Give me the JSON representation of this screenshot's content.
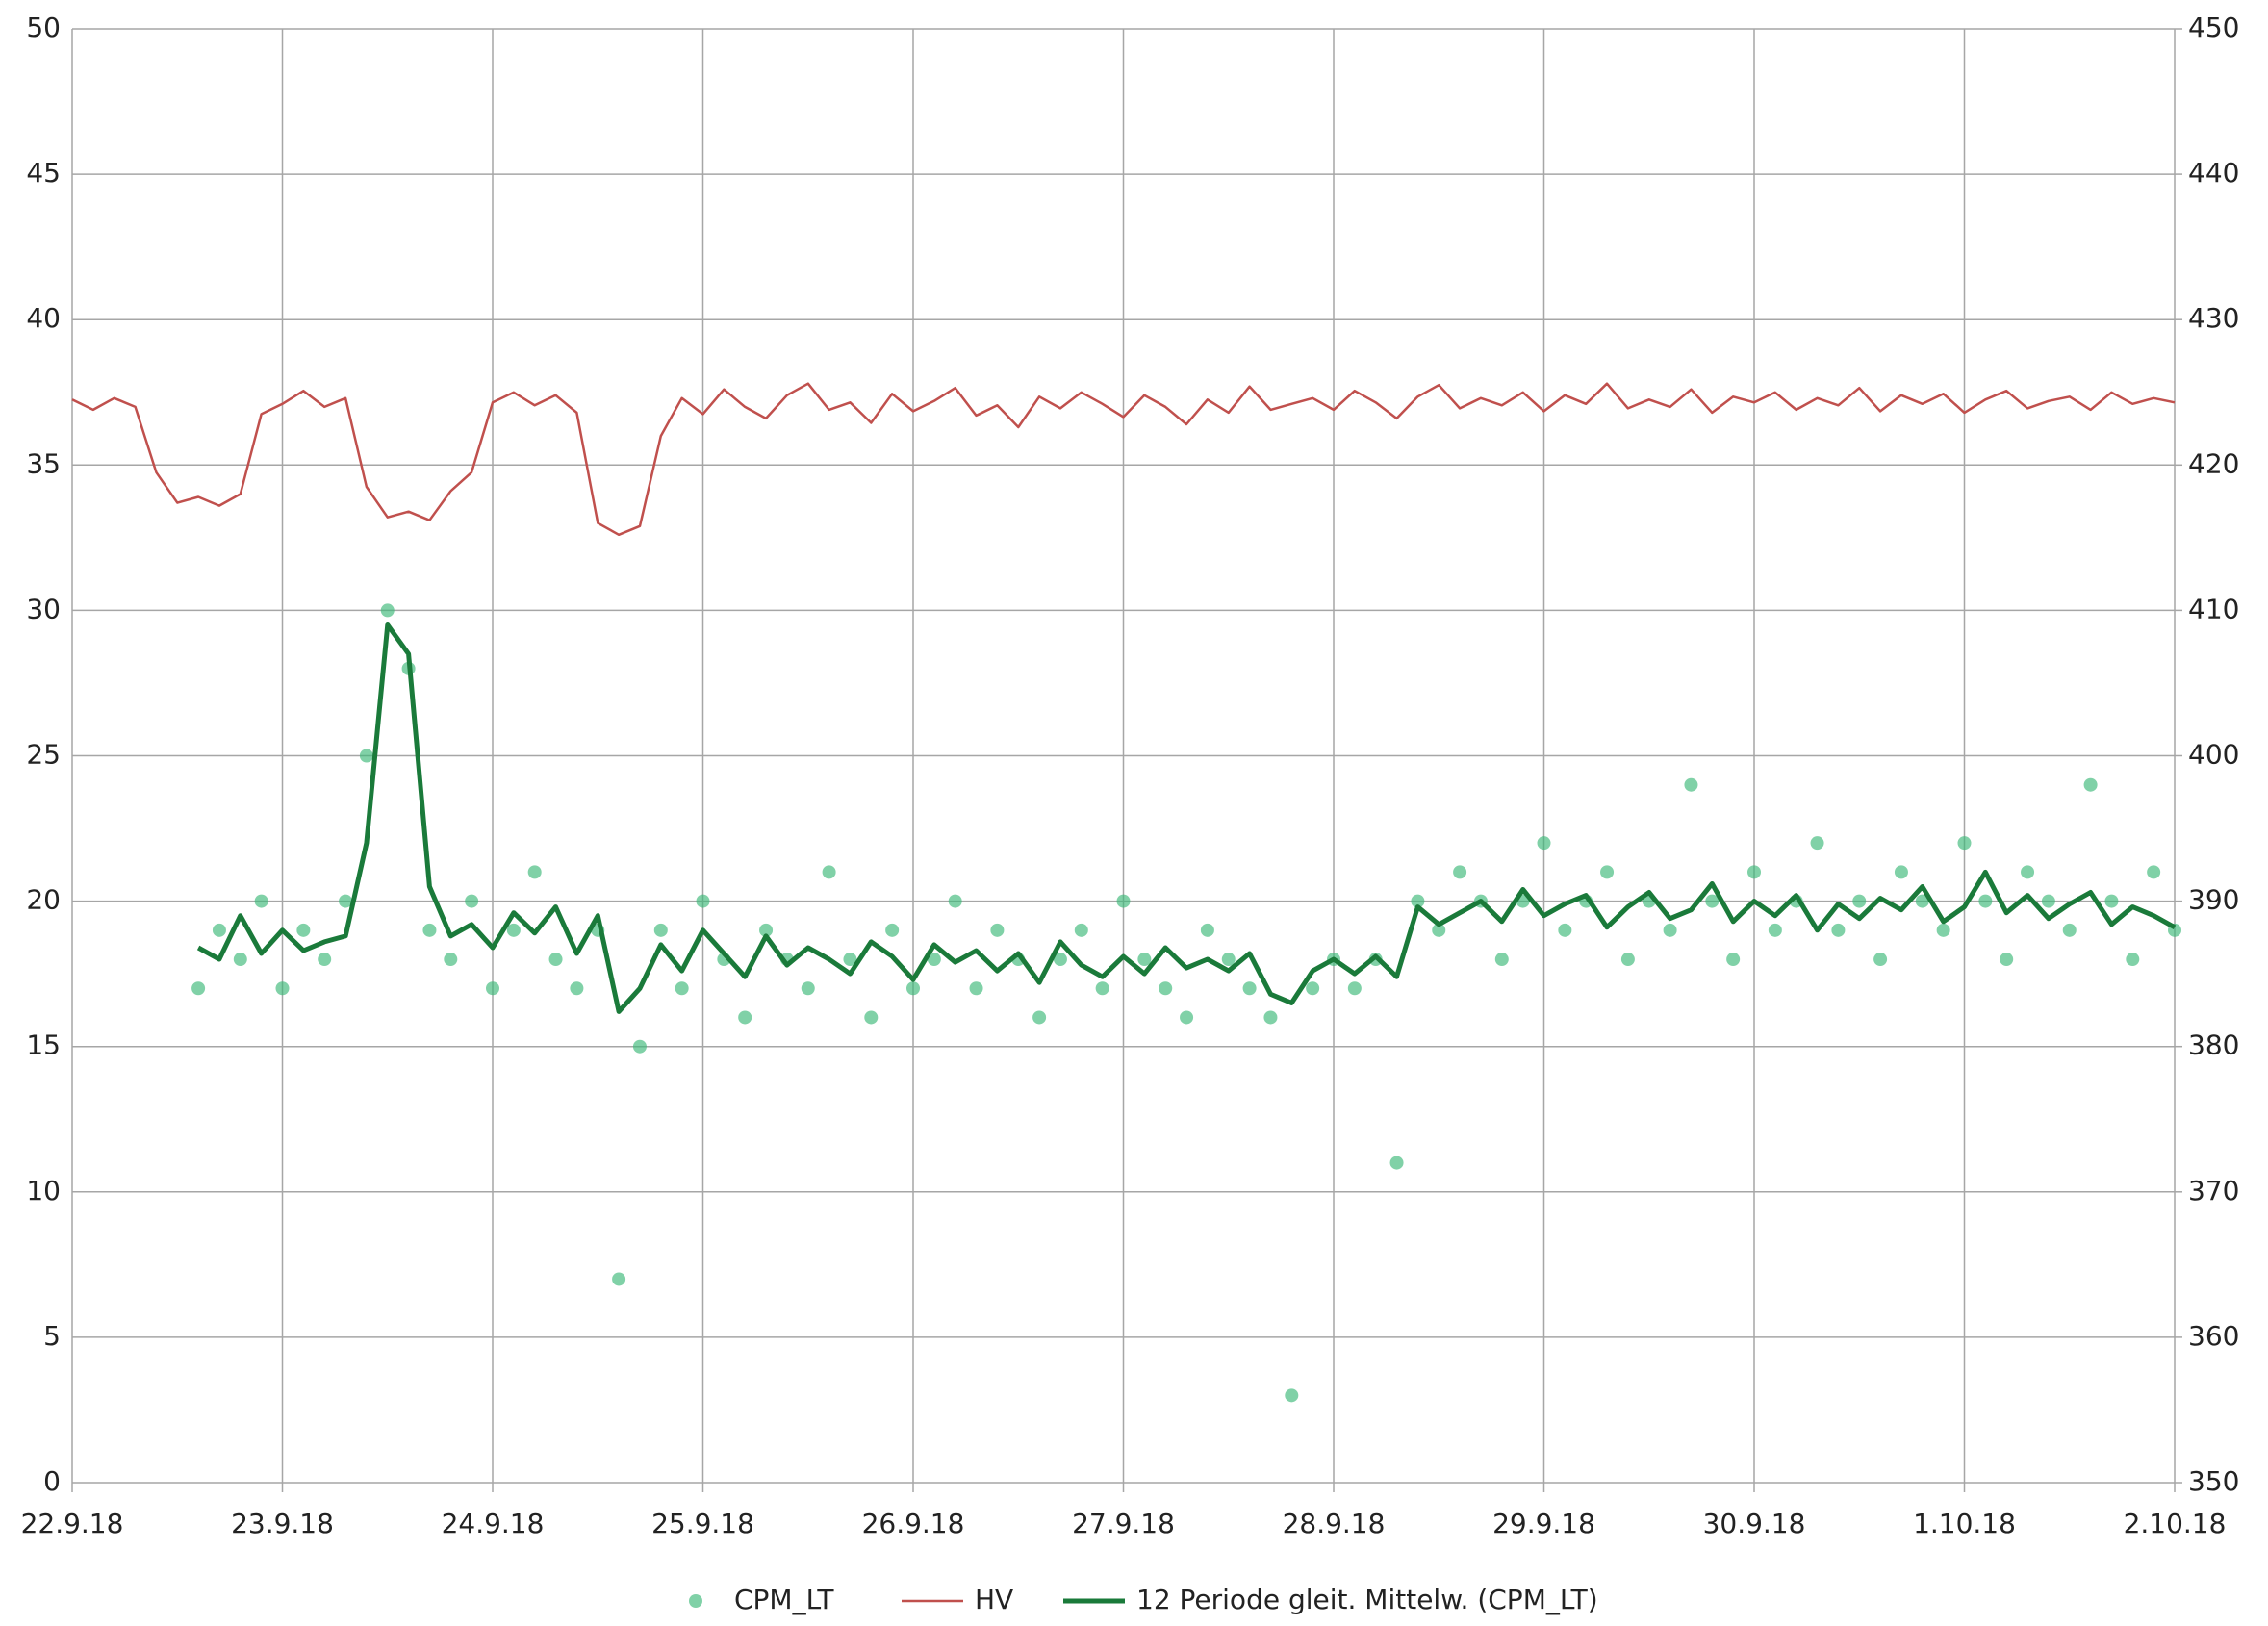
{
  "chart_data": {
    "type": "combo",
    "x": [
      0,
      0.1,
      0.2,
      0.3,
      0.4,
      0.5,
      0.6,
      0.7,
      0.8,
      0.9,
      1,
      1.1,
      1.2,
      1.3,
      1.4,
      1.5,
      1.6,
      1.7,
      1.8,
      1.9,
      2,
      2.1,
      2.2,
      2.3,
      2.4,
      2.5,
      2.6,
      2.7,
      2.8,
      2.9,
      3,
      3.1,
      3.2,
      3.3,
      3.4,
      3.5,
      3.6,
      3.7,
      3.8,
      3.9,
      4,
      4.1,
      4.2,
      4.3,
      4.4,
      4.5,
      4.6,
      4.7,
      4.8,
      4.9,
      5,
      5.1,
      5.2,
      5.3,
      5.4,
      5.5,
      5.6,
      5.7,
      5.8,
      5.9,
      6,
      6.1,
      6.2,
      6.3,
      6.4,
      6.5,
      6.6,
      6.7,
      6.8,
      6.9,
      7,
      7.1,
      7.2,
      7.3,
      7.4,
      7.5,
      7.6,
      7.7,
      7.8,
      7.9,
      8,
      8.1,
      8.2,
      8.3,
      8.4,
      8.5,
      8.6,
      8.7,
      8.8,
      8.9,
      9,
      9.1,
      9.2,
      9.3,
      9.4,
      9.5,
      9.6,
      9.7,
      9.8,
      9.9,
      10
    ],
    "series": [
      {
        "name": "CPM_LT",
        "type": "scatter",
        "color": "#3cb878",
        "values": [
          null,
          null,
          null,
          null,
          null,
          null,
          17,
          19,
          18,
          20,
          17,
          19,
          18,
          20,
          25,
          30,
          28,
          19,
          18,
          20,
          17,
          19,
          21,
          18,
          17,
          19,
          7,
          15,
          19,
          17,
          20,
          18,
          16,
          19,
          18,
          17,
          21,
          18,
          16,
          19,
          17,
          18,
          20,
          17,
          19,
          18,
          16,
          18,
          19,
          17,
          20,
          18,
          17,
          16,
          19,
          18,
          17,
          16,
          3,
          17,
          18,
          17,
          18,
          11,
          20,
          19,
          21,
          20,
          18,
          20,
          22,
          19,
          20,
          21,
          18,
          20,
          19,
          24,
          20,
          18,
          21,
          19,
          20,
          22,
          19,
          20,
          18,
          21,
          20,
          19,
          22,
          20,
          18,
          21,
          20,
          19,
          24,
          20,
          18,
          21,
          19
        ]
      },
      {
        "name": "HV",
        "type": "line",
        "axis": "y2",
        "color": "#c0504d",
        "values": [
          424.5,
          423.8,
          424.6,
          424.0,
          419.5,
          417.4,
          417.8,
          417.2,
          418.0,
          423.5,
          424.2,
          425.1,
          424.0,
          424.6,
          418.5,
          416.4,
          416.8,
          416.2,
          418.2,
          419.5,
          424.3,
          425.0,
          424.1,
          424.8,
          423.6,
          416.0,
          415.2,
          415.8,
          422.0,
          424.6,
          423.5,
          425.2,
          424.0,
          423.2,
          424.8,
          425.6,
          423.8,
          424.3,
          422.9,
          424.9,
          423.7,
          424.4,
          425.3,
          423.4,
          424.1,
          422.6,
          424.7,
          423.9,
          425.0,
          424.2,
          423.3,
          424.8,
          424.0,
          422.8,
          424.5,
          423.6,
          425.4,
          423.8,
          424.2,
          424.6,
          423.8,
          425.1,
          424.3,
          423.2,
          424.7,
          425.5,
          423.9,
          424.6,
          424.1,
          425.0,
          423.7,
          424.8,
          424.2,
          425.6,
          423.9,
          424.5,
          424.0,
          425.2,
          423.6,
          424.7,
          424.3,
          425.0,
          423.8,
          424.6,
          424.1,
          425.3,
          423.7,
          424.8,
          424.2,
          424.9,
          423.6,
          424.5,
          425.1,
          423.9,
          424.4,
          424.7,
          423.8,
          425.0,
          424.2,
          424.6,
          424.3
        ]
      },
      {
        "name": "12 Periode gleit. Mittelw. (CPM_LT)",
        "type": "line",
        "color": "#1a7a3a",
        "values": [
          null,
          null,
          null,
          null,
          null,
          null,
          18.4,
          18.0,
          19.5,
          18.2,
          19.0,
          18.3,
          18.6,
          18.8,
          22,
          29.5,
          28.5,
          20.5,
          18.8,
          19.2,
          18.4,
          19.6,
          18.9,
          19.8,
          18.2,
          19.5,
          16.2,
          17.0,
          18.5,
          17.6,
          19.0,
          18.2,
          17.4,
          18.8,
          17.8,
          18.4,
          18.0,
          17.5,
          18.6,
          18.1,
          17.3,
          18.5,
          17.9,
          18.3,
          17.6,
          18.2,
          17.2,
          18.6,
          17.8,
          17.4,
          18.1,
          17.5,
          18.4,
          17.7,
          18.0,
          17.6,
          18.2,
          16.8,
          16.5,
          17.6,
          18.0,
          17.5,
          18.1,
          17.4,
          19.8,
          19.2,
          19.6,
          20.0,
          19.3,
          20.4,
          19.5,
          19.9,
          20.2,
          19.1,
          19.8,
          20.3,
          19.4,
          19.7,
          20.6,
          19.3,
          20.0,
          19.5,
          20.2,
          19.0,
          19.9,
          19.4,
          20.1,
          19.7,
          20.5,
          19.3,
          19.8,
          21.0,
          19.6,
          20.2,
          19.4,
          19.9,
          20.3,
          19.2,
          19.8,
          19.5,
          19.1
        ]
      }
    ],
    "xlim": [
      0,
      10
    ],
    "xticks": [
      {
        "value": 0,
        "label": "22.9.18"
      },
      {
        "value": 1,
        "label": "23.9.18"
      },
      {
        "value": 2,
        "label": "24.9.18"
      },
      {
        "value": 3,
        "label": "25.9.18"
      },
      {
        "value": 4,
        "label": "26.9.18"
      },
      {
        "value": 5,
        "label": "27.9.18"
      },
      {
        "value": 6,
        "label": "28.9.18"
      },
      {
        "value": 7,
        "label": "29.9.18"
      },
      {
        "value": 8,
        "label": "30.9.18"
      },
      {
        "value": 9,
        "label": "1.10.18"
      },
      {
        "value": 10,
        "label": "2.10.18"
      }
    ],
    "ylim": [
      0,
      50
    ],
    "yticks": [
      0,
      5,
      10,
      15,
      20,
      25,
      30,
      35,
      40,
      45,
      50
    ],
    "y2lim": [
      350,
      450
    ],
    "y2ticks": [
      350,
      360,
      370,
      380,
      390,
      400,
      410,
      420,
      430,
      440,
      450
    ],
    "grid": true,
    "legend": "bottom"
  }
}
